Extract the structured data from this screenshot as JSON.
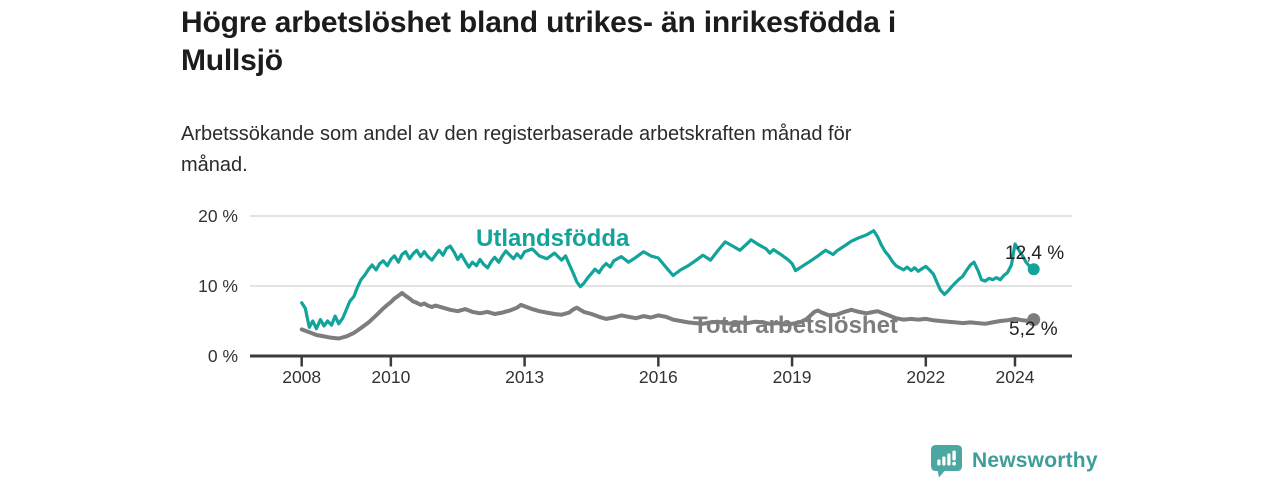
{
  "header": {
    "title": "Högre arbetslöshet bland utrikes- än inrikesfödda i\nMullsjö",
    "subtitle": "Arbetssökande som andel av den registerbaserade arbetskraften månad för\nmånad."
  },
  "footer": {
    "brand": "Newsworthy",
    "brand_color": "#3e9d99",
    "logo_icon": "bar-chart-speech-bubble-icon",
    "logo_color": "#4ca6a1"
  },
  "chart_data": {
    "type": "line",
    "title": "Högre arbetslöshet bland utrikes- än inrikesfödda i Mullsjö",
    "subtitle": "Arbetssökande som andel av den registerbaserade arbetskraften månad för månad.",
    "grid": "horizontal",
    "legend": "inline-labels",
    "style": {
      "axis_color": "#3b3b3b",
      "grid_color": "#dcdcdc",
      "text_color": "#333333",
      "background": "#ffffff"
    },
    "x_axis": {
      "range": [
        2007.0,
        2025.3
      ],
      "ticks": [
        2008,
        2010,
        2013,
        2016,
        2019,
        2022,
        2024
      ]
    },
    "y_axis": {
      "range": [
        0,
        21
      ],
      "ticks": [
        {
          "value": 0,
          "label": "0 %"
        },
        {
          "value": 10,
          "label": "10 %"
        },
        {
          "value": 20,
          "label": "20 %"
        }
      ]
    },
    "series": [
      {
        "name": "Utlandsfödda",
        "color": "#12a39a",
        "end_value": 12.4,
        "end_label": "12,4 %",
        "points": [
          [
            2008.0,
            7.6
          ],
          [
            2008.08,
            6.8
          ],
          [
            2008.17,
            4.1
          ],
          [
            2008.25,
            5.0
          ],
          [
            2008.33,
            3.9
          ],
          [
            2008.42,
            5.2
          ],
          [
            2008.5,
            4.3
          ],
          [
            2008.58,
            5.0
          ],
          [
            2008.67,
            4.4
          ],
          [
            2008.75,
            5.7
          ],
          [
            2008.83,
            4.6
          ],
          [
            2008.92,
            5.4
          ],
          [
            2009.0,
            6.6
          ],
          [
            2009.08,
            7.8
          ],
          [
            2009.17,
            8.5
          ],
          [
            2009.25,
            9.8
          ],
          [
            2009.33,
            10.9
          ],
          [
            2009.42,
            11.6
          ],
          [
            2009.5,
            12.4
          ],
          [
            2009.58,
            13.0
          ],
          [
            2009.67,
            12.3
          ],
          [
            2009.75,
            13.2
          ],
          [
            2009.83,
            13.6
          ],
          [
            2009.92,
            12.9
          ],
          [
            2010.0,
            13.8
          ],
          [
            2010.08,
            14.3
          ],
          [
            2010.17,
            13.4
          ],
          [
            2010.25,
            14.5
          ],
          [
            2010.33,
            14.9
          ],
          [
            2010.42,
            13.9
          ],
          [
            2010.5,
            14.6
          ],
          [
            2010.58,
            15.1
          ],
          [
            2010.67,
            14.2
          ],
          [
            2010.75,
            14.9
          ],
          [
            2010.83,
            14.2
          ],
          [
            2010.92,
            13.7
          ],
          [
            2011.0,
            14.4
          ],
          [
            2011.08,
            15.1
          ],
          [
            2011.17,
            14.4
          ],
          [
            2011.25,
            15.4
          ],
          [
            2011.33,
            15.7
          ],
          [
            2011.42,
            14.8
          ],
          [
            2011.5,
            13.8
          ],
          [
            2011.58,
            14.5
          ],
          [
            2011.67,
            13.5
          ],
          [
            2011.75,
            12.7
          ],
          [
            2011.83,
            13.4
          ],
          [
            2011.92,
            12.9
          ],
          [
            2012.0,
            13.8
          ],
          [
            2012.08,
            13.1
          ],
          [
            2012.17,
            12.6
          ],
          [
            2012.25,
            13.5
          ],
          [
            2012.33,
            14.1
          ],
          [
            2012.42,
            13.4
          ],
          [
            2012.5,
            14.3
          ],
          [
            2012.58,
            15.0
          ],
          [
            2012.67,
            14.4
          ],
          [
            2012.75,
            13.9
          ],
          [
            2012.83,
            14.6
          ],
          [
            2012.92,
            14.0
          ],
          [
            2013.0,
            14.9
          ],
          [
            2013.17,
            15.3
          ],
          [
            2013.33,
            14.3
          ],
          [
            2013.5,
            13.9
          ],
          [
            2013.67,
            14.7
          ],
          [
            2013.83,
            13.7
          ],
          [
            2013.92,
            14.3
          ],
          [
            2014.0,
            13.1
          ],
          [
            2014.08,
            12.0
          ],
          [
            2014.17,
            10.6
          ],
          [
            2014.25,
            9.9
          ],
          [
            2014.33,
            10.4
          ],
          [
            2014.42,
            11.2
          ],
          [
            2014.5,
            11.8
          ],
          [
            2014.58,
            12.4
          ],
          [
            2014.67,
            11.9
          ],
          [
            2014.75,
            12.7
          ],
          [
            2014.83,
            13.2
          ],
          [
            2014.92,
            12.7
          ],
          [
            2015.0,
            13.6
          ],
          [
            2015.17,
            14.2
          ],
          [
            2015.33,
            13.4
          ],
          [
            2015.5,
            14.1
          ],
          [
            2015.67,
            14.9
          ],
          [
            2015.83,
            14.3
          ],
          [
            2016.0,
            14.0
          ],
          [
            2016.17,
            12.7
          ],
          [
            2016.33,
            11.5
          ],
          [
            2016.5,
            12.3
          ],
          [
            2016.67,
            12.9
          ],
          [
            2016.83,
            13.6
          ],
          [
            2017.0,
            14.4
          ],
          [
            2017.17,
            13.7
          ],
          [
            2017.33,
            15.0
          ],
          [
            2017.5,
            16.3
          ],
          [
            2017.67,
            15.7
          ],
          [
            2017.83,
            15.1
          ],
          [
            2018.0,
            16.1
          ],
          [
            2018.08,
            16.6
          ],
          [
            2018.25,
            15.9
          ],
          [
            2018.42,
            15.3
          ],
          [
            2018.5,
            14.7
          ],
          [
            2018.58,
            15.2
          ],
          [
            2018.75,
            14.5
          ],
          [
            2018.92,
            13.7
          ],
          [
            2019.0,
            13.2
          ],
          [
            2019.08,
            12.2
          ],
          [
            2019.25,
            12.9
          ],
          [
            2019.42,
            13.6
          ],
          [
            2019.58,
            14.3
          ],
          [
            2019.75,
            15.1
          ],
          [
            2019.92,
            14.5
          ],
          [
            2020.0,
            15.0
          ],
          [
            2020.17,
            15.7
          ],
          [
            2020.33,
            16.4
          ],
          [
            2020.5,
            16.9
          ],
          [
            2020.67,
            17.3
          ],
          [
            2020.83,
            17.9
          ],
          [
            2020.92,
            17.0
          ],
          [
            2021.0,
            15.9
          ],
          [
            2021.08,
            15.0
          ],
          [
            2021.17,
            14.3
          ],
          [
            2021.25,
            13.5
          ],
          [
            2021.33,
            12.9
          ],
          [
            2021.5,
            12.3
          ],
          [
            2021.58,
            12.7
          ],
          [
            2021.67,
            12.2
          ],
          [
            2021.75,
            12.6
          ],
          [
            2021.83,
            12.1
          ],
          [
            2021.92,
            12.5
          ],
          [
            2022.0,
            12.8
          ],
          [
            2022.08,
            12.3
          ],
          [
            2022.17,
            11.7
          ],
          [
            2022.25,
            10.5
          ],
          [
            2022.33,
            9.4
          ],
          [
            2022.42,
            8.8
          ],
          [
            2022.5,
            9.3
          ],
          [
            2022.58,
            9.9
          ],
          [
            2022.67,
            10.5
          ],
          [
            2022.75,
            11.0
          ],
          [
            2022.83,
            11.4
          ],
          [
            2022.92,
            12.3
          ],
          [
            2023.0,
            13.0
          ],
          [
            2023.08,
            13.4
          ],
          [
            2023.17,
            12.2
          ],
          [
            2023.25,
            10.9
          ],
          [
            2023.33,
            10.7
          ],
          [
            2023.42,
            11.1
          ],
          [
            2023.5,
            10.9
          ],
          [
            2023.58,
            11.2
          ],
          [
            2023.67,
            10.9
          ],
          [
            2023.75,
            11.5
          ],
          [
            2023.83,
            11.9
          ],
          [
            2023.92,
            13.0
          ],
          [
            2024.0,
            16.0
          ],
          [
            2024.08,
            15.2
          ],
          [
            2024.17,
            14.3
          ],
          [
            2024.25,
            13.4
          ],
          [
            2024.33,
            12.8
          ],
          [
            2024.42,
            12.4
          ]
        ]
      },
      {
        "name": "Total arbetslöshet",
        "color": "#7d7d7d",
        "end_value": 5.2,
        "end_label": "5,2 %",
        "points": [
          [
            2008.0,
            3.8
          ],
          [
            2008.17,
            3.4
          ],
          [
            2008.33,
            3.0
          ],
          [
            2008.5,
            2.8
          ],
          [
            2008.67,
            2.6
          ],
          [
            2008.83,
            2.5
          ],
          [
            2009.0,
            2.8
          ],
          [
            2009.17,
            3.3
          ],
          [
            2009.33,
            4.0
          ],
          [
            2009.5,
            4.8
          ],
          [
            2009.67,
            5.8
          ],
          [
            2009.83,
            6.8
          ],
          [
            2009.92,
            7.3
          ],
          [
            2010.0,
            7.7
          ],
          [
            2010.08,
            8.2
          ],
          [
            2010.17,
            8.6
          ],
          [
            2010.25,
            9.0
          ],
          [
            2010.33,
            8.6
          ],
          [
            2010.42,
            8.2
          ],
          [
            2010.5,
            7.8
          ],
          [
            2010.58,
            7.6
          ],
          [
            2010.67,
            7.3
          ],
          [
            2010.75,
            7.5
          ],
          [
            2010.83,
            7.2
          ],
          [
            2010.92,
            7.0
          ],
          [
            2011.0,
            7.2
          ],
          [
            2011.17,
            6.9
          ],
          [
            2011.33,
            6.6
          ],
          [
            2011.5,
            6.4
          ],
          [
            2011.67,
            6.7
          ],
          [
            2011.83,
            6.3
          ],
          [
            2012.0,
            6.1
          ],
          [
            2012.17,
            6.3
          ],
          [
            2012.33,
            6.0
          ],
          [
            2012.5,
            6.2
          ],
          [
            2012.67,
            6.5
          ],
          [
            2012.83,
            6.9
          ],
          [
            2012.92,
            7.3
          ],
          [
            2013.0,
            7.1
          ],
          [
            2013.17,
            6.7
          ],
          [
            2013.33,
            6.4
          ],
          [
            2013.5,
            6.2
          ],
          [
            2013.67,
            6.0
          ],
          [
            2013.83,
            5.9
          ],
          [
            2014.0,
            6.2
          ],
          [
            2014.08,
            6.6
          ],
          [
            2014.17,
            6.9
          ],
          [
            2014.25,
            6.6
          ],
          [
            2014.33,
            6.3
          ],
          [
            2014.5,
            6.0
          ],
          [
            2014.67,
            5.6
          ],
          [
            2014.83,
            5.3
          ],
          [
            2015.0,
            5.5
          ],
          [
            2015.17,
            5.8
          ],
          [
            2015.33,
            5.6
          ],
          [
            2015.5,
            5.4
          ],
          [
            2015.67,
            5.7
          ],
          [
            2015.83,
            5.5
          ],
          [
            2016.0,
            5.8
          ],
          [
            2016.17,
            5.6
          ],
          [
            2016.33,
            5.2
          ],
          [
            2016.5,
            5.0
          ],
          [
            2016.67,
            4.8
          ],
          [
            2016.83,
            4.7
          ],
          [
            2017.0,
            4.6
          ],
          [
            2017.17,
            4.8
          ],
          [
            2017.33,
            4.9
          ],
          [
            2017.5,
            4.7
          ],
          [
            2017.67,
            4.6
          ],
          [
            2017.83,
            4.8
          ],
          [
            2018.0,
            4.7
          ],
          [
            2018.17,
            4.9
          ],
          [
            2018.33,
            4.8
          ],
          [
            2018.5,
            4.6
          ],
          [
            2018.67,
            4.7
          ],
          [
            2018.83,
            4.5
          ],
          [
            2019.0,
            4.6
          ],
          [
            2019.17,
            4.8
          ],
          [
            2019.33,
            5.3
          ],
          [
            2019.5,
            6.3
          ],
          [
            2019.58,
            6.5
          ],
          [
            2019.67,
            6.2
          ],
          [
            2019.83,
            5.8
          ],
          [
            2020.0,
            5.9
          ],
          [
            2020.17,
            6.3
          ],
          [
            2020.33,
            6.6
          ],
          [
            2020.5,
            6.3
          ],
          [
            2020.67,
            6.1
          ],
          [
            2020.83,
            6.3
          ],
          [
            2020.92,
            6.4
          ],
          [
            2021.0,
            6.2
          ],
          [
            2021.17,
            5.8
          ],
          [
            2021.33,
            5.4
          ],
          [
            2021.5,
            5.2
          ],
          [
            2021.67,
            5.3
          ],
          [
            2021.83,
            5.2
          ],
          [
            2022.0,
            5.3
          ],
          [
            2022.17,
            5.1
          ],
          [
            2022.33,
            5.0
          ],
          [
            2022.5,
            4.9
          ],
          [
            2022.67,
            4.8
          ],
          [
            2022.83,
            4.7
          ],
          [
            2023.0,
            4.8
          ],
          [
            2023.17,
            4.7
          ],
          [
            2023.33,
            4.6
          ],
          [
            2023.5,
            4.8
          ],
          [
            2023.67,
            5.0
          ],
          [
            2023.83,
            5.1
          ],
          [
            2024.0,
            5.3
          ],
          [
            2024.17,
            5.1
          ],
          [
            2024.33,
            5.0
          ],
          [
            2024.42,
            5.2
          ]
        ]
      }
    ]
  }
}
